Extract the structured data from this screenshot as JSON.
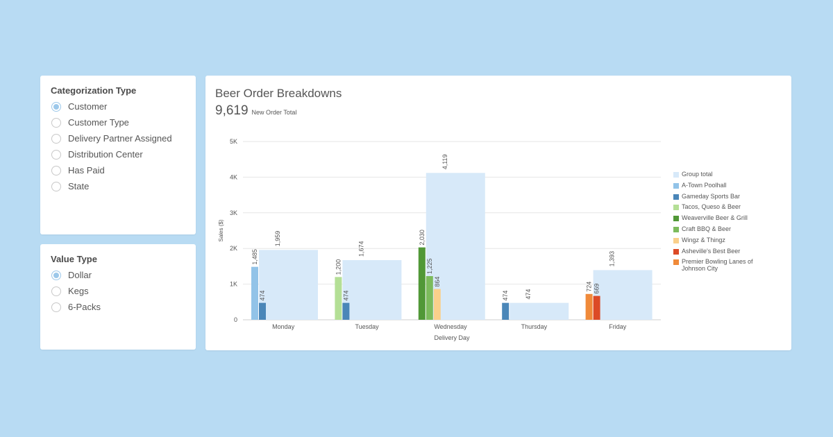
{
  "categorization": {
    "title": "Categorization Type",
    "options": [
      "Customer",
      "Customer Type",
      "Delivery Partner Assigned",
      "Distribution Center",
      "Has Paid",
      "State"
    ],
    "selected": 0
  },
  "value_type": {
    "title": "Value Type",
    "options": [
      "Dollar",
      "Kegs",
      "6-Packs"
    ],
    "selected": 0
  },
  "chart": {
    "title": "Beer Order Breakdowns",
    "total_value": "9,619",
    "total_label": "New Order Total"
  },
  "chart_data": {
    "type": "bar",
    "title": "Beer Order Breakdowns",
    "xlabel": "Delivery Day",
    "ylabel": "Sales ($)",
    "ylim": [
      0,
      5000
    ],
    "yticks": [
      {
        "value": 0,
        "label": "0"
      },
      {
        "value": 1000,
        "label": "1K"
      },
      {
        "value": 2000,
        "label": "2K"
      },
      {
        "value": 3000,
        "label": "3K"
      },
      {
        "value": 4000,
        "label": "4K"
      },
      {
        "value": 5000,
        "label": "5K"
      }
    ],
    "grid": true,
    "legend_position": "right",
    "group_total_name": "Group total",
    "group_total_color": "#d7e9f9",
    "categories": [
      "Monday",
      "Tuesday",
      "Wednesday",
      "Thursday",
      "Friday"
    ],
    "group_totals": [
      {
        "value": 1959,
        "label": "1,959"
      },
      {
        "value": 1674,
        "label": "1,674"
      },
      {
        "value": 4119,
        "label": "4,119"
      },
      {
        "value": 474,
        "label": "474"
      },
      {
        "value": 1393,
        "label": "1,393"
      }
    ],
    "series": [
      {
        "name": "A-Town Poolhall",
        "color": "#92c3e8"
      },
      {
        "name": "Gameday Sports Bar",
        "color": "#4a86b8"
      },
      {
        "name": "Tacos, Queso & Beer",
        "color": "#b4df96"
      },
      {
        "name": "Weaverville Beer & Grill",
        "color": "#519837"
      },
      {
        "name": "Craft BBQ & Beer",
        "color": "#7cbb5c"
      },
      {
        "name": "Wingz & Thingz",
        "color": "#fad08b"
      },
      {
        "name": "Asheville's Best Beer",
        "color": "#dc4a26"
      },
      {
        "name": "Premier Bowling Lanes of Johnson City",
        "color": "#f08a3a"
      }
    ],
    "groups": [
      {
        "day": "Monday",
        "bars": [
          {
            "series": "A-Town Poolhall",
            "value": 1485,
            "label": "1,485"
          },
          {
            "series": "Gameday Sports Bar",
            "value": 474,
            "label": "474"
          }
        ]
      },
      {
        "day": "Tuesday",
        "bars": [
          {
            "series": "Tacos, Queso & Beer",
            "value": 1200,
            "label": "1,200"
          },
          {
            "series": "Gameday Sports Bar",
            "value": 474,
            "label": "474"
          }
        ]
      },
      {
        "day": "Wednesday",
        "bars": [
          {
            "series": "Weaverville Beer & Grill",
            "value": 2030,
            "label": "2,030"
          },
          {
            "series": "Craft BBQ & Beer",
            "value": 1225,
            "label": "1,225"
          },
          {
            "series": "Wingz & Thingz",
            "value": 864,
            "label": "864"
          }
        ]
      },
      {
        "day": "Thursday",
        "bars": [
          {
            "series": "Gameday Sports Bar",
            "value": 474,
            "label": "474"
          }
        ]
      },
      {
        "day": "Friday",
        "bars": [
          {
            "series": "Premier Bowling Lanes of Johnson City",
            "value": 724,
            "label": "724"
          },
          {
            "series": "Asheville's Best Beer",
            "value": 669,
            "label": "669"
          }
        ]
      }
    ]
  }
}
